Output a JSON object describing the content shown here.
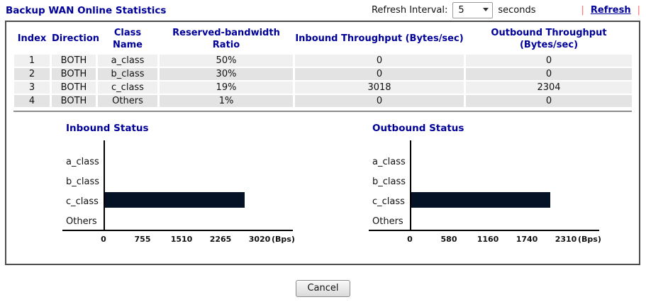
{
  "page": {
    "title": "Backup WAN Online Statistics"
  },
  "refresh": {
    "label": "Refresh Interval:",
    "options": [
      "5"
    ],
    "selected": "5",
    "unit": "seconds",
    "separator": "|",
    "link_label": "Refresh"
  },
  "table": {
    "headers": [
      "Index",
      "Direction",
      "Class Name",
      "Reserved-bandwidth Ratio",
      "Inbound Throughput (Bytes/sec)",
      "Outbound Throughput (Bytes/sec)"
    ],
    "rows": [
      [
        "1",
        "BOTH",
        "a_class",
        "50%",
        "0",
        "0"
      ],
      [
        "2",
        "BOTH",
        "b_class",
        "30%",
        "0",
        "0"
      ],
      [
        "3",
        "BOTH",
        "c_class",
        "19%",
        "3018",
        "2304"
      ],
      [
        "4",
        "BOTH",
        "Others",
        "1%",
        "0",
        "0"
      ]
    ]
  },
  "chart_data": [
    {
      "type": "bar",
      "orientation": "horizontal",
      "title": "Inbound Status",
      "categories": [
        "a_class",
        "b_class",
        "c_class",
        "Others"
      ],
      "values": [
        0,
        0,
        3018,
        0
      ],
      "xticks": [
        0,
        755,
        1510,
        2265,
        3020
      ],
      "xlim": [
        0,
        3020
      ],
      "unit_label": "(Bps)",
      "grid": false,
      "bar_color": "#051226"
    },
    {
      "type": "bar",
      "orientation": "horizontal",
      "title": "Outbound Status",
      "categories": [
        "a_class",
        "b_class",
        "c_class",
        "Others"
      ],
      "values": [
        0,
        0,
        2304,
        0
      ],
      "xticks": [
        0,
        580,
        1160,
        1740,
        2310
      ],
      "xlim": [
        0,
        2310
      ],
      "unit_label": "(Bps)",
      "grid": false,
      "bar_color": "#051226"
    }
  ],
  "footer": {
    "cancel_label": "Cancel"
  },
  "colors": {
    "heading_navy": "#000099",
    "bar_navy": "#051226",
    "pipe_red": "#ff6666",
    "row_light": "#f0f0f0",
    "row_dark": "#e3e3e3"
  }
}
